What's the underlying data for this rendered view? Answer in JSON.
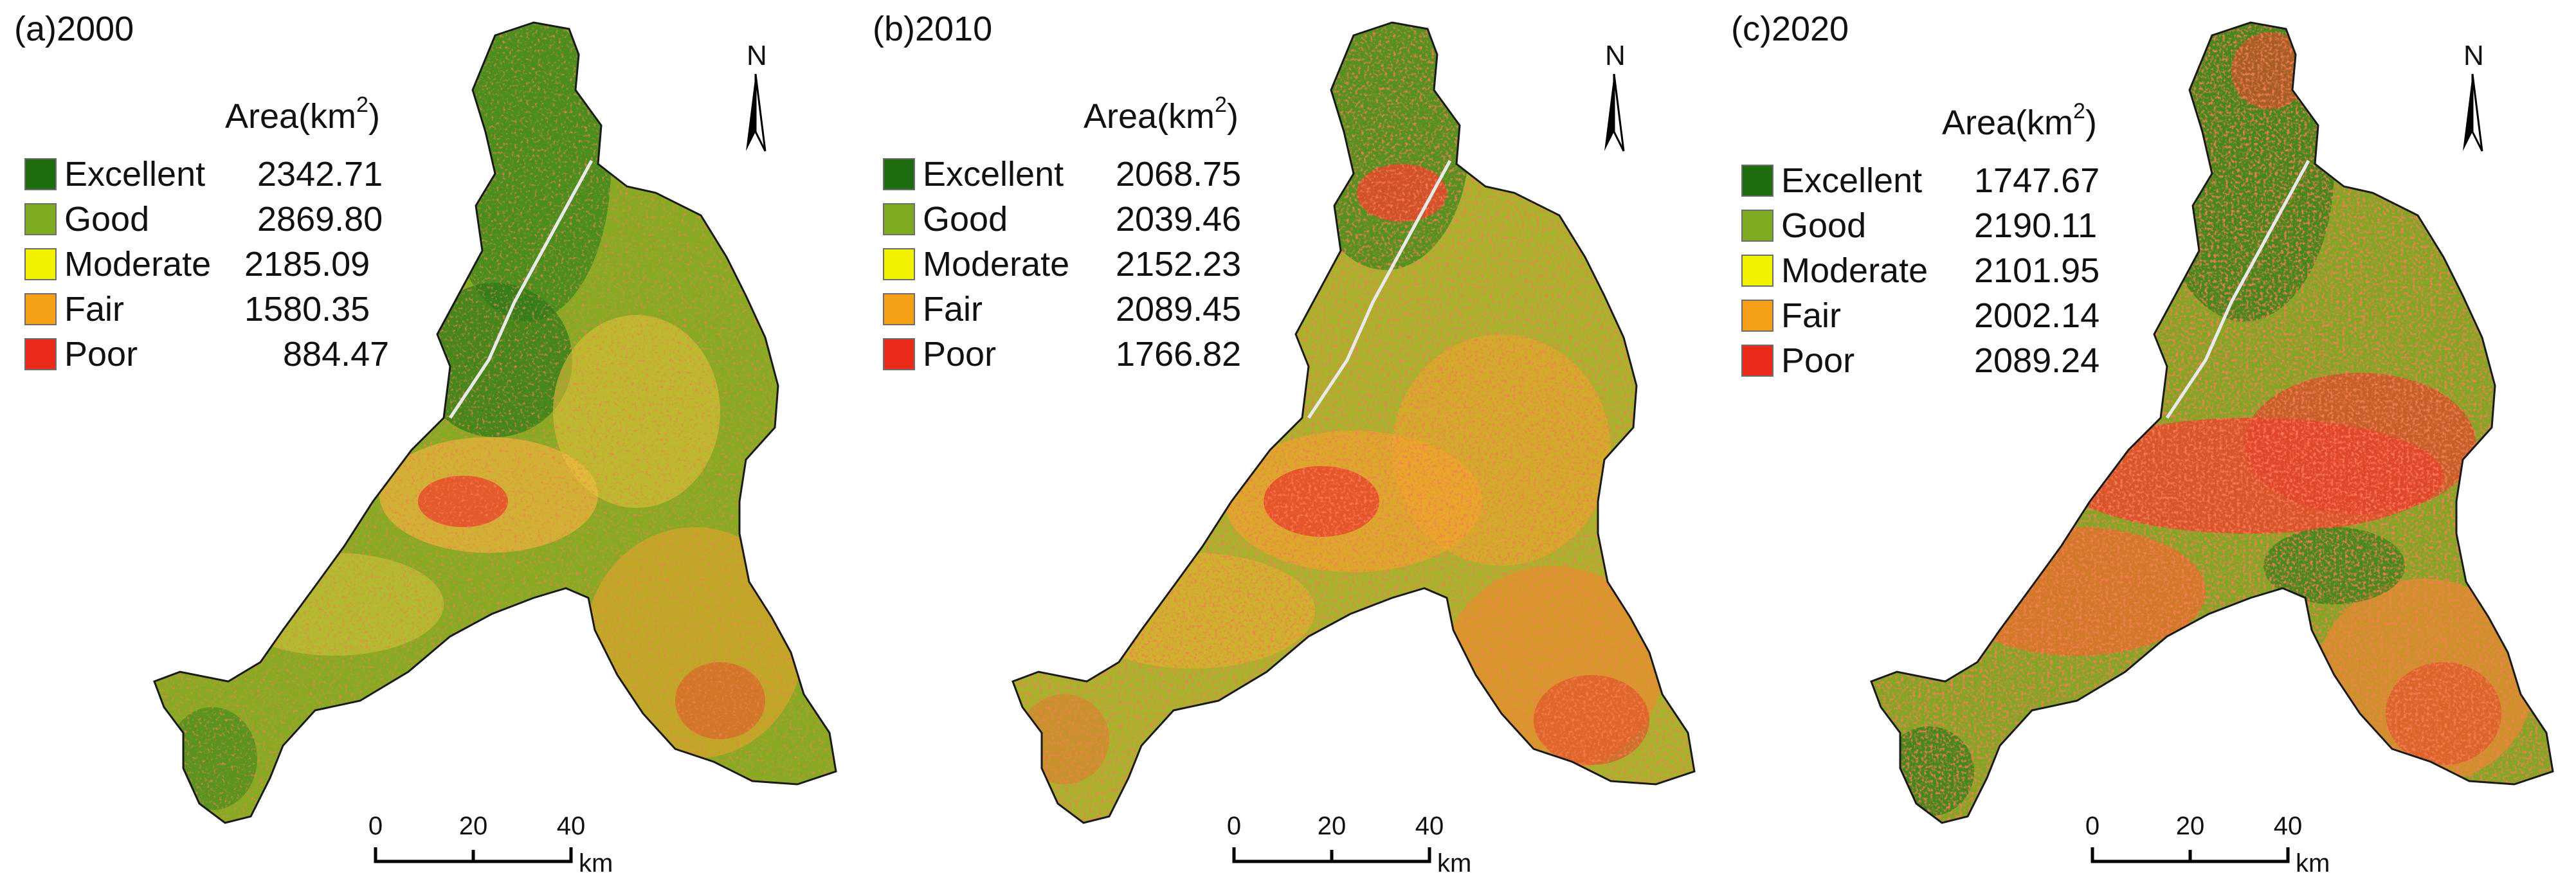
{
  "legend_colors": {
    "excellent": "#1e6b10",
    "good": "#7eaa22",
    "moderate": "#f2f200",
    "fair": "#f5a016",
    "poor": "#ec2a1a"
  },
  "area_header": {
    "prefix": "Area(km",
    "superscript": "2",
    "suffix": ")"
  },
  "north_label": "N",
  "scale_bar": {
    "ticks": [
      "0",
      "20",
      "40"
    ],
    "unit": "km"
  },
  "panels": [
    {
      "title": "(a)2000",
      "classes": [
        {
          "label": "Excellent",
          "value": "2342.71"
        },
        {
          "label": "Good",
          "value": "2869.80"
        },
        {
          "label": "Moderate",
          "value": "2185.09"
        },
        {
          "label": "Fair",
          "value": "1580.35"
        },
        {
          "label": "Poor",
          "value": "884.47"
        }
      ]
    },
    {
      "title": "(b)2010",
      "classes": [
        {
          "label": "Excellent",
          "value": "2068.75"
        },
        {
          "label": "Good",
          "value": "2039.46"
        },
        {
          "label": "Moderate",
          "value": "2152.23"
        },
        {
          "label": "Fair",
          "value": "2089.45"
        },
        {
          "label": "Poor",
          "value": "1766.82"
        }
      ]
    },
    {
      "title": "(c)2020",
      "classes": [
        {
          "label": "Excellent",
          "value": "1747.67"
        },
        {
          "label": "Good",
          "value": "2190.11"
        },
        {
          "label": "Moderate",
          "value": "2101.95"
        },
        {
          "label": "Fair",
          "value": "2002.14"
        },
        {
          "label": "Poor",
          "value": "2089.24"
        }
      ]
    }
  ]
}
